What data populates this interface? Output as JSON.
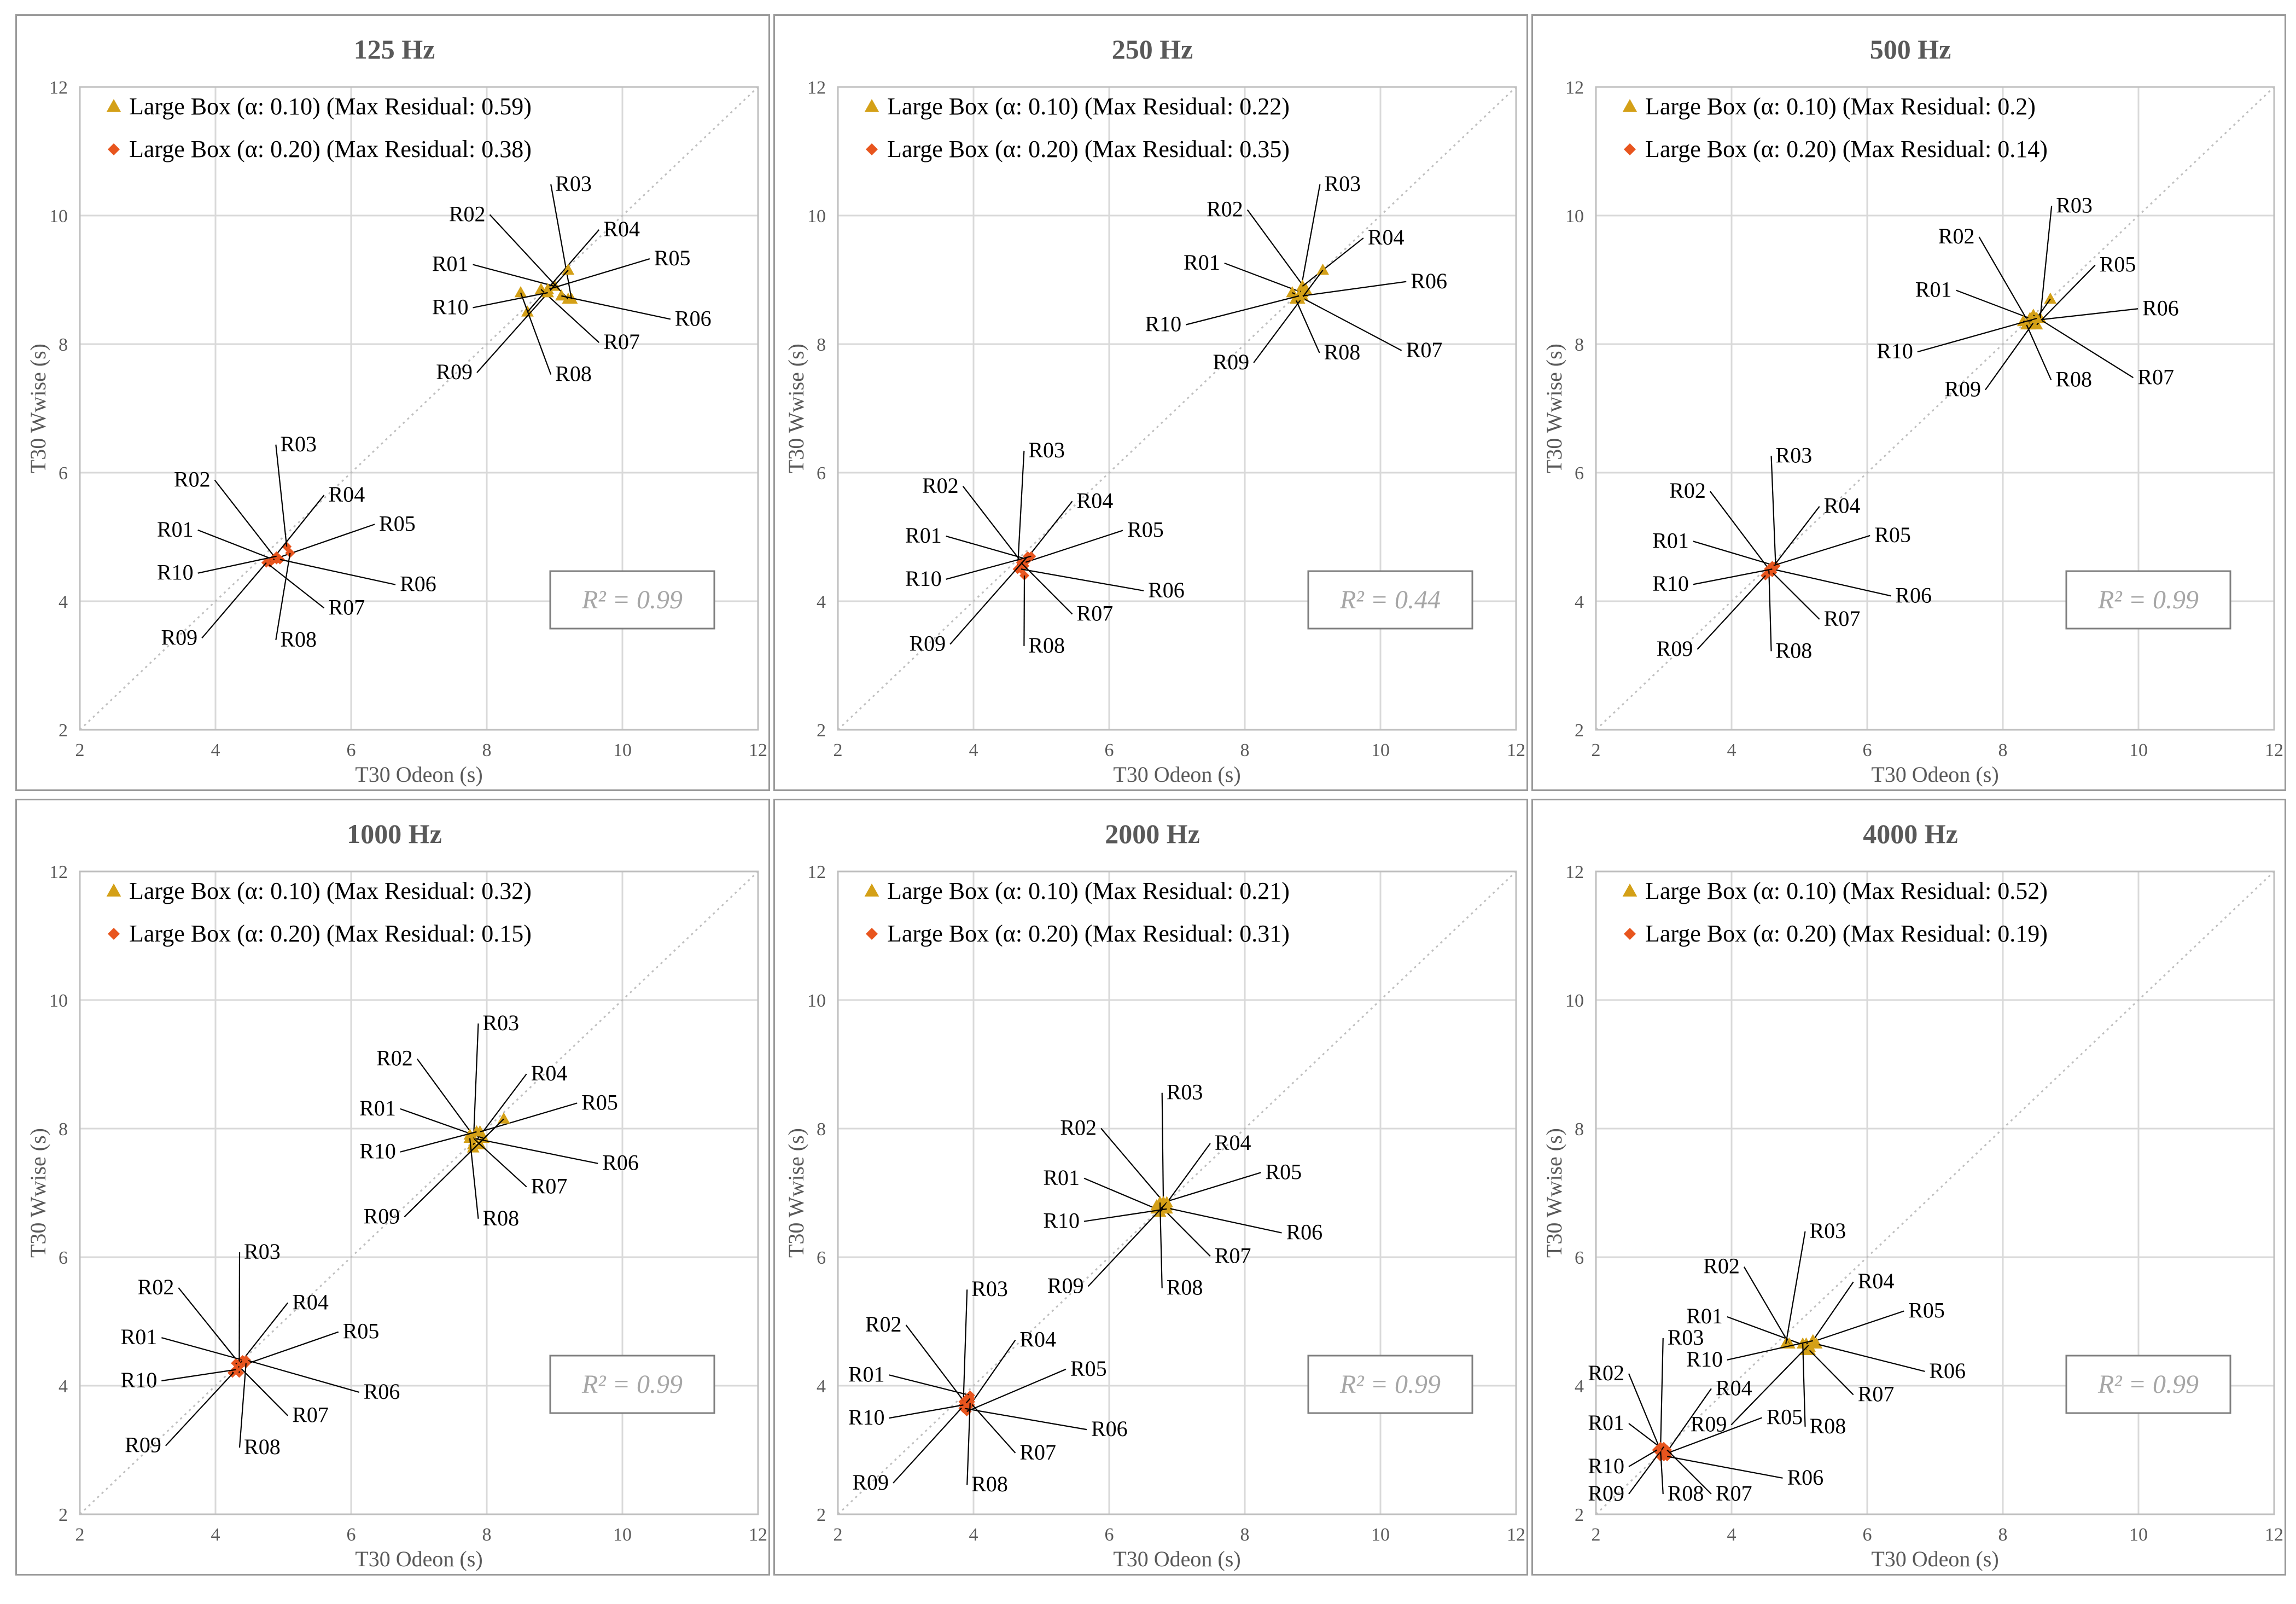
{
  "colors": {
    "series_a": "#D4A017",
    "series_b": "#E8551E",
    "grid": "#D9D9D9",
    "text": "#595959"
  },
  "chart_data": [
    {
      "type": "scatter",
      "title": "125 Hz",
      "xlabel": "T30 Odeon (s)",
      "ylabel": "T30 Wwise (s)",
      "xlim": [
        2,
        12
      ],
      "ylim": [
        2,
        12
      ],
      "x_ticks": [
        "2",
        "4",
        "6",
        "8",
        "10",
        "12"
      ],
      "y_ticks": [
        "2",
        "4",
        "6",
        "8",
        "10",
        "12"
      ],
      "grid": true,
      "reference_line": "y = x",
      "legend_position": "top-left",
      "r_squared": "R² = 0.99",
      "series": [
        {
          "name": "Large Box (α: 0.10) (Max Residual: 0.59)",
          "marker": "triangle",
          "points": [
            {
              "label": "R01",
              "x": 9.0,
              "y": 8.9
            },
            {
              "label": "R02",
              "x": 9.2,
              "y": 8.7
            },
            {
              "label": "R03",
              "x": 9.25,
              "y": 8.7
            },
            {
              "label": "R04",
              "x": 8.6,
              "y": 8.5
            },
            {
              "label": "R05",
              "x": 8.9,
              "y": 8.85
            },
            {
              "label": "R06",
              "x": 9.1,
              "y": 8.75
            },
            {
              "label": "R07",
              "x": 8.8,
              "y": 8.85
            },
            {
              "label": "R08",
              "x": 8.5,
              "y": 8.8
            },
            {
              "label": "R09",
              "x": 9.2,
              "y": 9.15
            },
            {
              "label": "R10",
              "x": 8.9,
              "y": 8.8
            }
          ]
        },
        {
          "name": "Large Box (α: 0.20) (Max Residual: 0.38)",
          "marker": "diamond",
          "points": [
            {
              "label": "R01",
              "x": 4.85,
              "y": 4.65
            },
            {
              "label": "R02",
              "x": 4.9,
              "y": 4.65
            },
            {
              "label": "R03",
              "x": 5.05,
              "y": 4.85
            },
            {
              "label": "R04",
              "x": 4.8,
              "y": 4.6
            },
            {
              "label": "R05",
              "x": 4.85,
              "y": 4.65
            },
            {
              "label": "R06",
              "x": 4.95,
              "y": 4.65
            },
            {
              "label": "R07",
              "x": 4.75,
              "y": 4.6
            },
            {
              "label": "R08",
              "x": 5.1,
              "y": 4.75
            },
            {
              "label": "R09",
              "x": 4.75,
              "y": 4.6
            },
            {
              "label": "R10",
              "x": 4.9,
              "y": 4.7
            }
          ]
        }
      ]
    },
    {
      "type": "scatter",
      "title": "250 Hz",
      "xlabel": "T30 Odeon (s)",
      "ylabel": "T30 Wwise (s)",
      "xlim": [
        2,
        12
      ],
      "ylim": [
        2,
        12
      ],
      "x_ticks": [
        "2",
        "4",
        "6",
        "8",
        "10",
        "12"
      ],
      "y_ticks": [
        "2",
        "4",
        "6",
        "8",
        "10",
        "12"
      ],
      "grid": true,
      "reference_line": "y = x",
      "legend_position": "top-left",
      "r_squared": "R² = 0.44",
      "series": [
        {
          "name": "Large Box (α: 0.10) (Max Residual: 0.22)",
          "marker": "triangle",
          "points": [
            {
              "label": "R01",
              "x": 8.85,
              "y": 8.8
            },
            {
              "label": "R02",
              "x": 8.9,
              "y": 8.85
            },
            {
              "label": "R03",
              "x": 8.8,
              "y": 8.7
            },
            {
              "label": "R04",
              "x": 8.85,
              "y": 8.9
            },
            {
              "label": "R06",
              "x": 8.85,
              "y": 8.75
            },
            {
              "label": "R07",
              "x": 8.7,
              "y": 8.8
            },
            {
              "label": "R08",
              "x": 8.75,
              "y": 8.7
            },
            {
              "label": "R09",
              "x": 9.15,
              "y": 9.15
            },
            {
              "label": "R10",
              "x": 8.8,
              "y": 8.75
            }
          ]
        },
        {
          "name": "Large Box (α: 0.20) (Max Residual: 0.35)",
          "marker": "diamond",
          "points": [
            {
              "label": "R01",
              "x": 4.8,
              "y": 4.65
            },
            {
              "label": "R02",
              "x": 4.75,
              "y": 4.55
            },
            {
              "label": "R03",
              "x": 4.65,
              "y": 4.5
            },
            {
              "label": "R04",
              "x": 4.7,
              "y": 4.55
            },
            {
              "label": "R05",
              "x": 4.75,
              "y": 4.6
            },
            {
              "label": "R06",
              "x": 4.7,
              "y": 4.5
            },
            {
              "label": "R07",
              "x": 4.7,
              "y": 4.6
            },
            {
              "label": "R08",
              "x": 4.75,
              "y": 4.4
            },
            {
              "label": "R09",
              "x": 4.8,
              "y": 4.7
            },
            {
              "label": "R10",
              "x": 4.85,
              "y": 4.7
            }
          ]
        }
      ]
    },
    {
      "type": "scatter",
      "title": "500 Hz",
      "xlabel": "T30 Odeon (s)",
      "ylabel": "T30 Wwise (s)",
      "xlim": [
        2,
        12
      ],
      "ylim": [
        2,
        12
      ],
      "x_ticks": [
        "2",
        "4",
        "6",
        "8",
        "10",
        "12"
      ],
      "y_ticks": [
        "2",
        "4",
        "6",
        "8",
        "10",
        "12"
      ],
      "grid": true,
      "reference_line": "y = x",
      "legend_position": "top-left",
      "r_squared": "R² = 0.99",
      "series": [
        {
          "name": "Large Box (α: 0.10) (Max Residual: 0.2)",
          "marker": "triangle",
          "points": [
            {
              "label": "R01",
              "x": 8.4,
              "y": 8.4
            },
            {
              "label": "R02",
              "x": 8.4,
              "y": 8.3
            },
            {
              "label": "R03",
              "x": 8.55,
              "y": 8.4
            },
            {
              "label": "R05",
              "x": 8.5,
              "y": 8.3
            },
            {
              "label": "R06",
              "x": 8.3,
              "y": 8.35
            },
            {
              "label": "R07",
              "x": 8.45,
              "y": 8.45
            },
            {
              "label": "R08",
              "x": 8.35,
              "y": 8.3
            },
            {
              "label": "R09",
              "x": 8.7,
              "y": 8.7
            },
            {
              "label": "R10",
              "x": 8.5,
              "y": 8.4
            }
          ]
        },
        {
          "name": "Large Box (α: 0.20) (Max Residual: 0.14)",
          "marker": "diamond",
          "points": [
            {
              "label": "R01",
              "x": 4.65,
              "y": 4.55
            },
            {
              "label": "R02",
              "x": 4.55,
              "y": 4.5
            },
            {
              "label": "R03",
              "x": 4.65,
              "y": 4.55
            },
            {
              "label": "R04",
              "x": 4.55,
              "y": 4.45
            },
            {
              "label": "R05",
              "x": 4.6,
              "y": 4.55
            },
            {
              "label": "R06",
              "x": 4.6,
              "y": 4.5
            },
            {
              "label": "R07",
              "x": 4.6,
              "y": 4.45
            },
            {
              "label": "R08",
              "x": 4.55,
              "y": 4.5
            },
            {
              "label": "R09",
              "x": 4.5,
              "y": 4.4
            },
            {
              "label": "R10",
              "x": 4.6,
              "y": 4.5
            }
          ]
        }
      ]
    },
    {
      "type": "scatter",
      "title": "1000 Hz",
      "xlabel": "T30 Odeon (s)",
      "ylabel": "T30 Wwise (s)",
      "xlim": [
        2,
        12
      ],
      "ylim": [
        2,
        12
      ],
      "x_ticks": [
        "2",
        "4",
        "6",
        "8",
        "10",
        "12"
      ],
      "y_ticks": [
        "2",
        "4",
        "6",
        "8",
        "10",
        "12"
      ],
      "grid": true,
      "reference_line": "y = x",
      "legend_position": "top-left",
      "r_squared": "R² = 0.99",
      "series": [
        {
          "name": "Large Box (α: 0.10) (Max Residual: 0.32)",
          "marker": "triangle",
          "points": [
            {
              "label": "R01",
              "x": 7.95,
              "y": 7.85
            },
            {
              "label": "R02",
              "x": 7.9,
              "y": 7.75
            },
            {
              "label": "R03",
              "x": 7.8,
              "y": 7.7
            },
            {
              "label": "R04",
              "x": 7.8,
              "y": 7.75
            },
            {
              "label": "R05",
              "x": 7.9,
              "y": 7.95
            },
            {
              "label": "R06",
              "x": 7.8,
              "y": 7.85
            },
            {
              "label": "R07",
              "x": 7.75,
              "y": 7.9
            },
            {
              "label": "R08",
              "x": 7.75,
              "y": 7.85
            },
            {
              "label": "R09",
              "x": 8.25,
              "y": 8.15
            },
            {
              "label": "R10",
              "x": 7.85,
              "y": 7.95
            }
          ]
        },
        {
          "name": "Large Box (α: 0.20) (Max Residual: 0.15)",
          "marker": "diamond",
          "points": [
            {
              "label": "R01",
              "x": 4.4,
              "y": 4.4
            },
            {
              "label": "R02",
              "x": 4.35,
              "y": 4.35
            },
            {
              "label": "R03",
              "x": 4.35,
              "y": 4.2
            },
            {
              "label": "R04",
              "x": 4.25,
              "y": 4.2
            },
            {
              "label": "R05",
              "x": 4.35,
              "y": 4.3
            },
            {
              "label": "R06",
              "x": 4.45,
              "y": 4.4
            },
            {
              "label": "R07",
              "x": 4.3,
              "y": 4.35
            },
            {
              "label": "R08",
              "x": 4.45,
              "y": 4.35
            },
            {
              "label": "R09",
              "x": 4.35,
              "y": 4.3
            },
            {
              "label": "R10",
              "x": 4.3,
              "y": 4.25
            }
          ]
        }
      ]
    },
    {
      "type": "scatter",
      "title": "2000 Hz",
      "xlabel": "T30 Odeon (s)",
      "ylabel": "T30 Wwise (s)",
      "xlim": [
        2,
        12
      ],
      "ylim": [
        2,
        12
      ],
      "x_ticks": [
        "2",
        "4",
        "6",
        "8",
        "10",
        "12"
      ],
      "y_ticks": [
        "2",
        "4",
        "6",
        "8",
        "10",
        "12"
      ],
      "grid": true,
      "reference_line": "y = x",
      "legend_position": "top-left",
      "r_squared": "R² = 0.99",
      "series": [
        {
          "name": "Large Box (α: 0.10) (Max Residual: 0.21)",
          "marker": "triangle",
          "points": [
            {
              "label": "R01",
              "x": 6.7,
              "y": 6.75
            },
            {
              "label": "R02",
              "x": 6.85,
              "y": 6.8
            },
            {
              "label": "R03",
              "x": 6.8,
              "y": 6.75
            },
            {
              "label": "R04",
              "x": 6.75,
              "y": 6.7
            },
            {
              "label": "R05",
              "x": 6.8,
              "y": 6.85
            },
            {
              "label": "R06",
              "x": 6.7,
              "y": 6.8
            },
            {
              "label": "R07",
              "x": 6.75,
              "y": 6.8
            },
            {
              "label": "R08",
              "x": 6.75,
              "y": 6.85
            },
            {
              "label": "R09",
              "x": 6.85,
              "y": 6.85
            },
            {
              "label": "R10",
              "x": 6.85,
              "y": 6.75
            }
          ]
        },
        {
          "name": "Large Box (α: 0.20) (Max Residual: 0.31)",
          "marker": "diamond",
          "points": [
            {
              "label": "R01",
              "x": 3.95,
              "y": 3.85
            },
            {
              "label": "R02",
              "x": 3.9,
              "y": 3.7
            },
            {
              "label": "R03",
              "x": 3.85,
              "y": 3.75
            },
            {
              "label": "R04",
              "x": 3.95,
              "y": 3.7
            },
            {
              "label": "R05",
              "x": 3.9,
              "y": 3.6
            },
            {
              "label": "R06",
              "x": 3.85,
              "y": 3.65
            },
            {
              "label": "R07",
              "x": 3.9,
              "y": 3.8
            },
            {
              "label": "R08",
              "x": 3.95,
              "y": 3.75
            },
            {
              "label": "R09",
              "x": 3.95,
              "y": 3.8
            },
            {
              "label": "R10",
              "x": 3.85,
              "y": 3.7
            }
          ]
        }
      ]
    },
    {
      "type": "scatter",
      "title": "4000 Hz",
      "xlabel": "T30 Odeon (s)",
      "ylabel": "T30 Wwise (s)",
      "xlim": [
        2,
        12
      ],
      "ylim": [
        2,
        12
      ],
      "x_ticks": [
        "2",
        "4",
        "6",
        "8",
        "10",
        "12"
      ],
      "y_ticks": [
        "2",
        "4",
        "6",
        "8",
        "10",
        "12"
      ],
      "grid": true,
      "reference_line": "y = x",
      "legend_position": "top-left",
      "r_squared": "R² = 0.99",
      "series": [
        {
          "name": "Large Box (α: 0.10) (Max Residual: 0.52)",
          "marker": "triangle",
          "points": [
            {
              "label": "R01",
              "x": 5.15,
              "y": 4.6
            },
            {
              "label": "R02",
              "x": 4.85,
              "y": 4.65
            },
            {
              "label": "R03",
              "x": 4.8,
              "y": 4.65
            },
            {
              "label": "R04",
              "x": 5.1,
              "y": 4.55
            },
            {
              "label": "R05",
              "x": 5.1,
              "y": 4.65
            },
            {
              "label": "R06",
              "x": 5.25,
              "y": 4.65
            },
            {
              "label": "R07",
              "x": 5.15,
              "y": 4.55
            },
            {
              "label": "R08",
              "x": 5.05,
              "y": 4.65
            },
            {
              "label": "R09",
              "x": 5.2,
              "y": 4.7
            },
            {
              "label": "R10",
              "x": 5.2,
              "y": 4.7
            }
          ]
        },
        {
          "name": "Large Box (α: 0.20) (Max Residual: 0.19)",
          "marker": "diamond",
          "points": [
            {
              "label": "R01",
              "x": 3.0,
              "y": 3.0
            },
            {
              "label": "R02",
              "x": 2.95,
              "y": 3.0
            },
            {
              "label": "R03",
              "x": 2.95,
              "y": 2.9
            },
            {
              "label": "R04",
              "x": 3.0,
              "y": 2.9
            },
            {
              "label": "R05",
              "x": 3.05,
              "y": 2.95
            },
            {
              "label": "R06",
              "x": 3.05,
              "y": 2.9
            },
            {
              "label": "R07",
              "x": 3.05,
              "y": 3.0
            },
            {
              "label": "R08",
              "x": 2.95,
              "y": 3.05
            },
            {
              "label": "R09",
              "x": 3.0,
              "y": 3.05
            },
            {
              "label": "R10",
              "x": 2.9,
              "y": 3.0
            }
          ]
        }
      ]
    }
  ]
}
